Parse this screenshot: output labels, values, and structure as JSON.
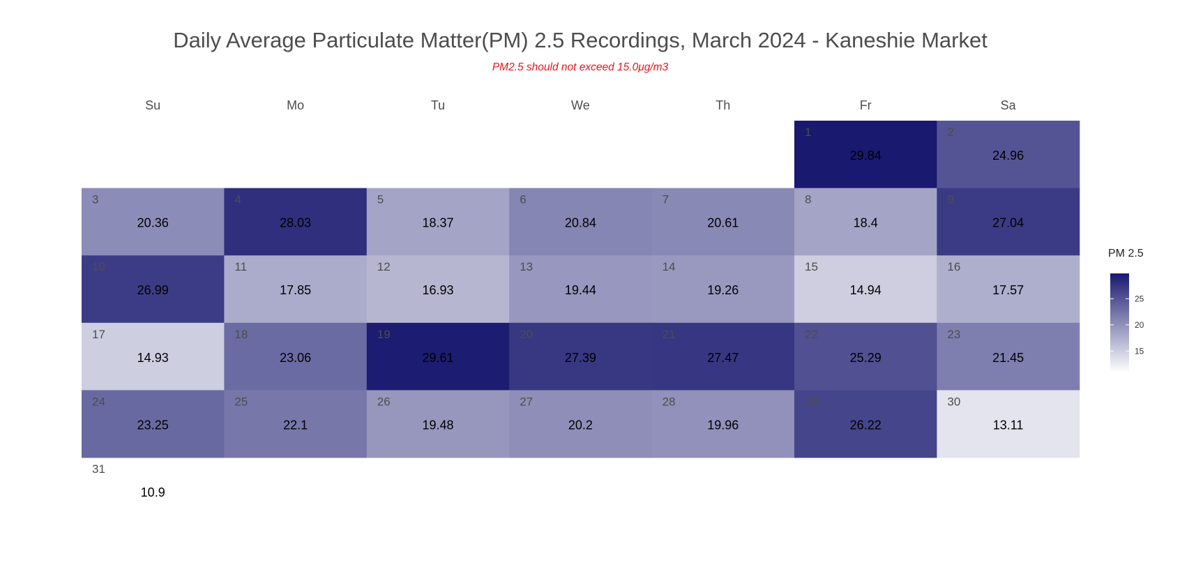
{
  "chart_data": {
    "type": "heatmap",
    "title": "Daily Average Particulate Matter(PM) 2.5 Recordings, March 2024 - Kaneshie Market",
    "subtitle": "PM2.5 should not exceed 15.0μg/m3",
    "weekdays": [
      "Su",
      "Mo",
      "Tu",
      "We",
      "Th",
      "Fr",
      "Sa"
    ],
    "first_weekday_index": 5,
    "days": [
      {
        "day": "1",
        "value": 29.84,
        "label": "29.84"
      },
      {
        "day": "2",
        "value": 24.96,
        "label": "24.96"
      },
      {
        "day": "3",
        "value": 20.36,
        "label": "20.36"
      },
      {
        "day": "4",
        "value": 28.03,
        "label": "28.03"
      },
      {
        "day": "5",
        "value": 18.37,
        "label": "18.37"
      },
      {
        "day": "6",
        "value": 20.84,
        "label": "20.84"
      },
      {
        "day": "7",
        "value": 20.61,
        "label": "20.61"
      },
      {
        "day": "8",
        "value": 18.4,
        "label": "18.4"
      },
      {
        "day": "9",
        "value": 27.04,
        "label": "27.04"
      },
      {
        "day": "10",
        "value": 26.99,
        "label": "26.99"
      },
      {
        "day": "11",
        "value": 17.85,
        "label": "17.85"
      },
      {
        "day": "12",
        "value": 16.93,
        "label": "16.93"
      },
      {
        "day": "13",
        "value": 19.44,
        "label": "19.44"
      },
      {
        "day": "14",
        "value": 19.26,
        "label": "19.26"
      },
      {
        "day": "15",
        "value": 14.94,
        "label": "14.94"
      },
      {
        "day": "16",
        "value": 17.57,
        "label": "17.57"
      },
      {
        "day": "17",
        "value": 14.93,
        "label": "14.93"
      },
      {
        "day": "18",
        "value": 23.06,
        "label": "23.06"
      },
      {
        "day": "19",
        "value": 29.61,
        "label": "29.61"
      },
      {
        "day": "20",
        "value": 27.39,
        "label": "27.39"
      },
      {
        "day": "21",
        "value": 27.47,
        "label": "27.47"
      },
      {
        "day": "22",
        "value": 25.29,
        "label": "25.29"
      },
      {
        "day": "23",
        "value": 21.45,
        "label": "21.45"
      },
      {
        "day": "24",
        "value": 23.25,
        "label": "23.25"
      },
      {
        "day": "25",
        "value": 22.1,
        "label": "22.1"
      },
      {
        "day": "26",
        "value": 19.48,
        "label": "19.48"
      },
      {
        "day": "27",
        "value": 20.2,
        "label": "20.2"
      },
      {
        "day": "28",
        "value": 19.96,
        "label": "19.96"
      },
      {
        "day": "29",
        "value": 26.22,
        "label": "26.22"
      },
      {
        "day": "30",
        "value": 13.11,
        "label": "13.11"
      },
      {
        "day": "31",
        "value": 10.9,
        "label": "10.9",
        "fill": false
      }
    ],
    "legend": {
      "title": "PM 2.5",
      "ticks": [
        {
          "value": 15,
          "label": "15"
        },
        {
          "value": 20,
          "label": "20"
        },
        {
          "value": 25,
          "label": "25"
        }
      ],
      "range": [
        10.9,
        29.84
      ]
    },
    "color_scale": {
      "low": "#ffffff",
      "high": "#191970"
    }
  }
}
